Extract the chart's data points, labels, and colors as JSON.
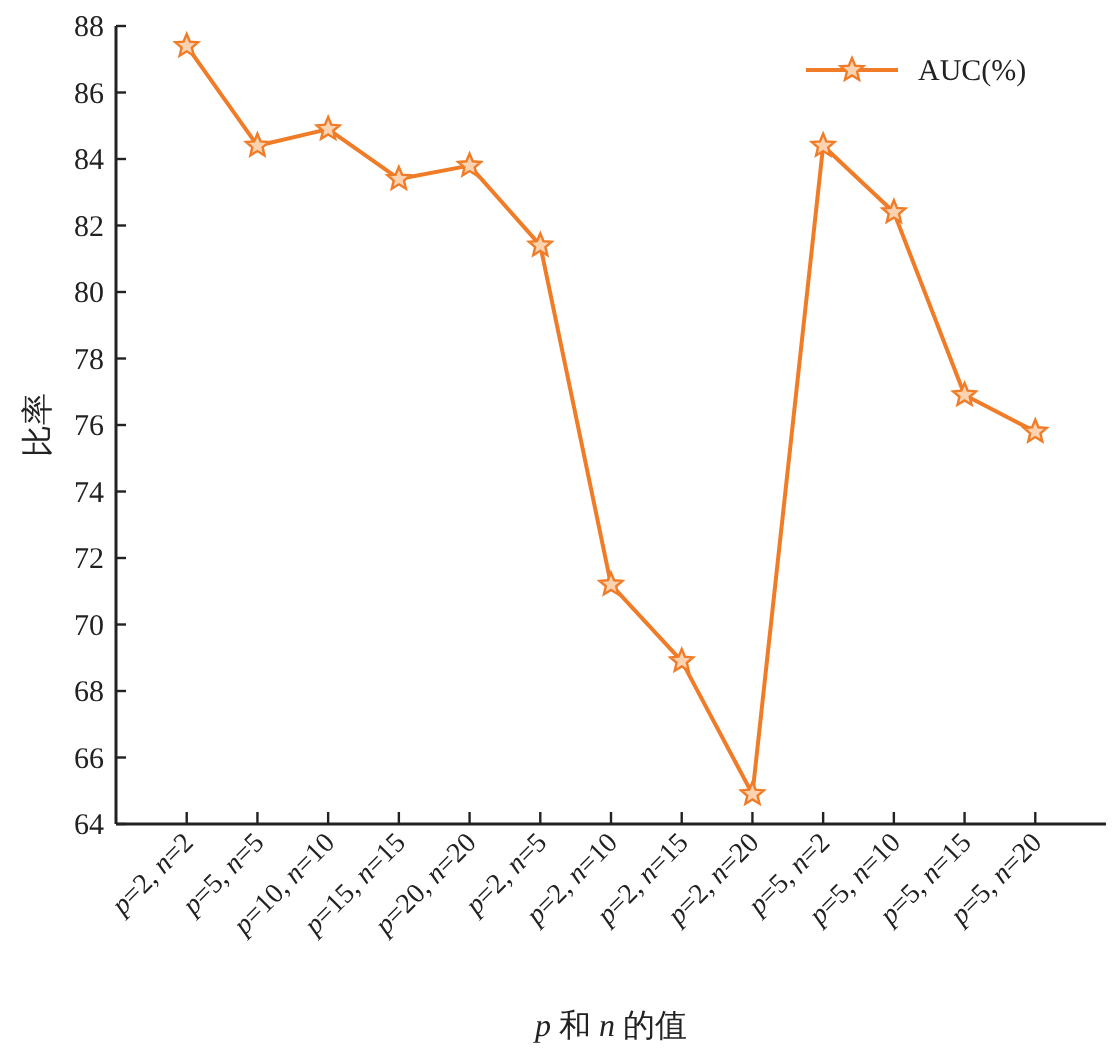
{
  "chart_data": {
    "type": "line",
    "xlabel": "*p* 和 *n* 的值",
    "ylabel": "比率",
    "categories": [
      "*p*=2, *n*=2",
      "*p*=5, *n*=5",
      "*p*=10, *n*=10",
      "*p*=15, *n*=15",
      "*p*=20, *n*=20",
      "*p*=2, *n*=5",
      "*p*=2, *n*=10",
      "*p*=2, *n*=15",
      "*p*=2, *n*=20",
      "*p*=5, *n*=2",
      "*p*=5, *n*=10",
      "*p*=5, *n*=15",
      "*p*=5, *n*=20"
    ],
    "series": [
      {
        "name": "AUC(%)",
        "color": "#f07c28",
        "values": [
          87.4,
          84.4,
          84.9,
          83.4,
          83.8,
          81.4,
          71.2,
          68.9,
          64.9,
          84.4,
          82.4,
          76.9,
          75.8
        ]
      }
    ],
    "ylim": [
      64,
      88
    ],
    "yticks": [
      64,
      66,
      68,
      70,
      72,
      74,
      76,
      78,
      80,
      82,
      84,
      86,
      88
    ],
    "marker": "star",
    "legend": "top right",
    "grid": false
  }
}
